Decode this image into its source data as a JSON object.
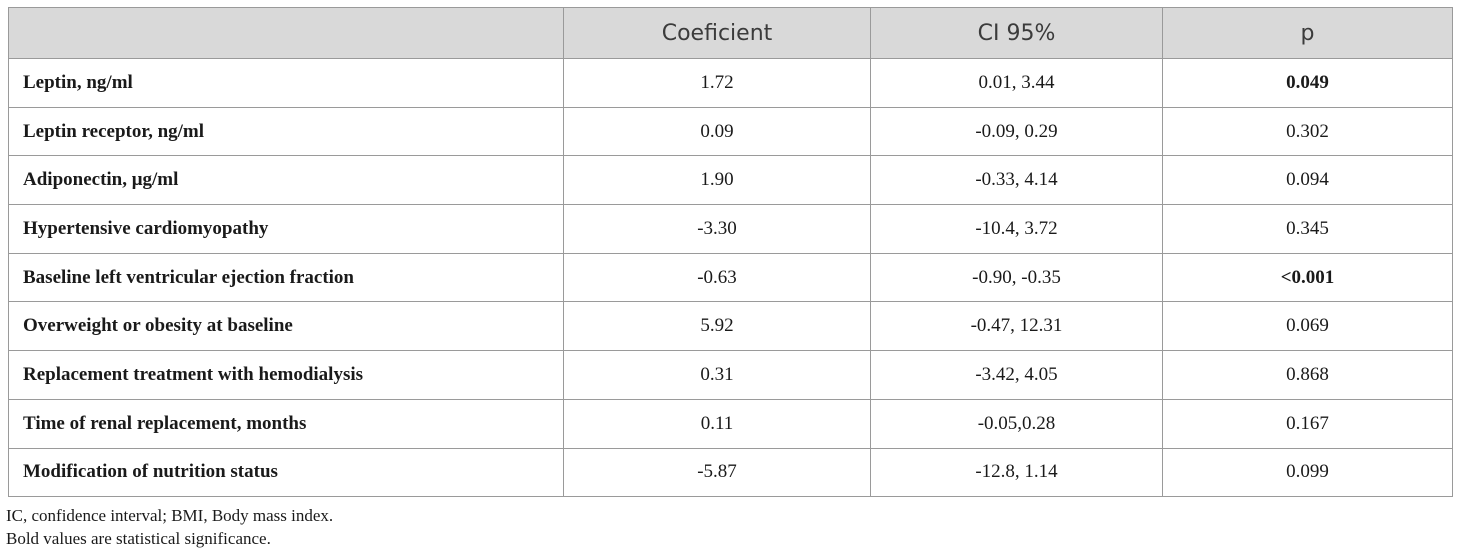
{
  "table": {
    "headers": [
      "",
      "Coeficient",
      "CI 95%",
      "p"
    ],
    "rows": [
      {
        "label": "Leptin, ng/ml",
        "coef": "1.72",
        "ci": "0.01, 3.44",
        "p": "0.049",
        "p_bold": true
      },
      {
        "label": "Leptin receptor, ng/ml",
        "coef": "0.09",
        "ci": "-0.09, 0.29",
        "p": "0.302",
        "p_bold": false
      },
      {
        "label": "Adiponectin, μg/ml",
        "coef": "1.90",
        "ci": "-0.33, 4.14",
        "p": "0.094",
        "p_bold": false
      },
      {
        "label": "Hypertensive cardiomyopathy",
        "coef": "-3.30",
        "ci": "-10.4, 3.72",
        "p": "0.345",
        "p_bold": false
      },
      {
        "label": "Baseline left ventricular ejection fraction",
        "coef": "-0.63",
        "ci": "-0.90, -0.35",
        "p": "<0.001",
        "p_bold": true
      },
      {
        "label": "Overweight or obesity at baseline",
        "coef": "5.92",
        "ci": "-0.47, 12.31",
        "p": "0.069",
        "p_bold": false
      },
      {
        "label": "Replacement treatment with hemodialysis",
        "coef": "0.31",
        "ci": "-3.42, 4.05",
        "p": "0.868",
        "p_bold": false
      },
      {
        "label": "Time of renal replacement, months",
        "coef": "0.11",
        "ci": "-0.05,0.28",
        "p": "0.167",
        "p_bold": false
      },
      {
        "label": "Modification of nutrition status",
        "coef": "-5.87",
        "ci": "-12.8, 1.14",
        "p": "0.099",
        "p_bold": false
      }
    ]
  },
  "notes": {
    "abbreviations": "IC, confidence interval; BMI, Body mass index.",
    "bold_note": "Bold values are statistical significance."
  }
}
